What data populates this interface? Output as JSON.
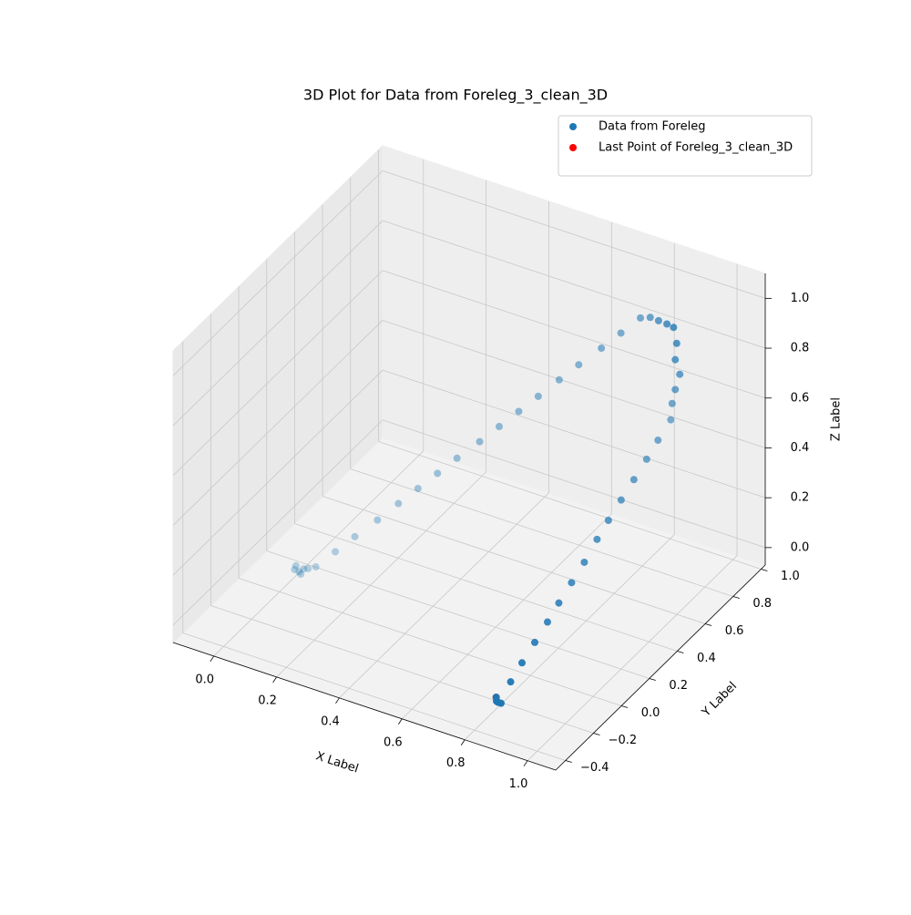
{
  "chart_data": {
    "type": "scatter3d",
    "title": "3D Plot for Data from Foreleg_3_clean_3D",
    "xlabel": "X Label",
    "ylabel": "Y Label",
    "zlabel": "Z Label",
    "xlim": [
      -0.13,
      1.09
    ],
    "ylim": [
      -0.47,
      1.03
    ],
    "zlim": [
      -0.07,
      1.1
    ],
    "xticks": [
      {
        "value": 0,
        "label": "0.0"
      },
      {
        "value": 0.2,
        "label": "0.2"
      },
      {
        "value": 0.4,
        "label": "0.4"
      },
      {
        "value": 0.6,
        "label": "0.6"
      },
      {
        "value": 0.8,
        "label": "0.8"
      },
      {
        "value": 1,
        "label": "1.0"
      }
    ],
    "yticks": [
      {
        "value": -0.4,
        "label": "−0.4"
      },
      {
        "value": -0.2,
        "label": "−0.2"
      },
      {
        "value": 0,
        "label": "0.0"
      },
      {
        "value": 0.2,
        "label": "0.2"
      },
      {
        "value": 0.4,
        "label": "0.4"
      },
      {
        "value": 0.6,
        "label": "0.6"
      },
      {
        "value": 0.8,
        "label": "0.8"
      },
      {
        "value": 1,
        "label": "1.0"
      }
    ],
    "zticks": [
      {
        "value": 0,
        "label": "0.0"
      },
      {
        "value": 0.2,
        "label": "0.2"
      },
      {
        "value": 0.4,
        "label": "0.4"
      },
      {
        "value": 0.6,
        "label": "0.6"
      },
      {
        "value": 0.8,
        "label": "0.8"
      },
      {
        "value": 1,
        "label": "1.0"
      }
    ],
    "grid": true,
    "depthshade": true,
    "legend": "upper right",
    "series": [
      {
        "name": "Data from Foreleg",
        "color": "#1f77b4",
        "x": [
          0.03,
          0.04,
          0.05,
          0.03,
          0.05,
          0.06,
          0.08,
          0.12,
          0.16,
          0.21,
          0.25,
          0.29,
          0.33,
          0.37,
          0.42,
          0.46,
          0.5,
          0.54,
          0.58,
          0.62,
          0.67,
          0.71,
          0.75,
          0.79,
          0.83,
          0.87,
          0.9,
          0.91,
          0.91,
          0.92,
          0.91,
          0.9,
          0.9,
          0.895,
          0.89,
          0.885,
          0.88,
          0.875,
          0.87,
          0.865,
          0.86,
          0.855,
          0.85,
          0.845,
          0.84,
          0.835,
          0.83,
          0.83,
          0.84,
          0.82
        ],
        "y": [
          0.04,
          0.05,
          0.06,
          0.05,
          0.04,
          0.07,
          0.08,
          0.13,
          0.18,
          0.23,
          0.29,
          0.34,
          0.39,
          0.44,
          0.49,
          0.54,
          0.59,
          0.64,
          0.7,
          0.75,
          0.8,
          0.85,
          0.9,
          0.88,
          0.85,
          0.82,
          0.8,
          0.8,
          0.79,
          0.8,
          0.79,
          0.79,
          0.78,
          0.7,
          0.63,
          0.55,
          0.47,
          0.39,
          0.32,
          0.24,
          0.16,
          0.08,
          0.01,
          -0.07,
          -0.15,
          -0.22,
          -0.3,
          -0.31,
          -0.3,
          -0.29
        ],
        "z": [
          0.01,
          0.0,
          0.01,
          0.02,
          0.0,
          0.01,
          0.02,
          0.07,
          0.12,
          0.18,
          0.23,
          0.28,
          0.33,
          0.38,
          0.44,
          0.49,
          0.54,
          0.59,
          0.64,
          0.69,
          0.75,
          0.8,
          0.85,
          0.88,
          0.9,
          0.92,
          0.93,
          0.87,
          0.81,
          0.75,
          0.69,
          0.63,
          0.57,
          0.53,
          0.49,
          0.45,
          0.41,
          0.37,
          0.33,
          0.28,
          0.24,
          0.2,
          0.16,
          0.12,
          0.08,
          0.04,
          0.0,
          0.01,
          0.0,
          0.01
        ]
      },
      {
        "name": "Last Point of Foreleg_3_clean_3D",
        "color": "#ff0000",
        "x": [
          0.82
        ],
        "y": [
          -0.29
        ],
        "z": [
          0.01
        ]
      }
    ]
  }
}
